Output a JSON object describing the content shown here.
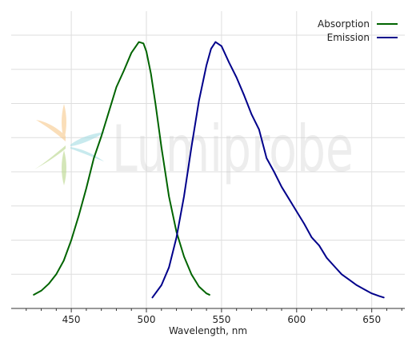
{
  "chart_data": {
    "type": "line",
    "xlabel": "Wavelength, nm",
    "ylabel": "",
    "xlim": [
      410,
      672
    ],
    "ylim": [
      0,
      1.0
    ],
    "x_ticks": [
      450,
      500,
      550,
      600,
      650
    ],
    "y_grid_levels": [
      0.125,
      0.25,
      0.375,
      0.5,
      0.625,
      0.75,
      0.875,
      1.0
    ],
    "grid": true,
    "legend_position": "top-right",
    "series": [
      {
        "name": "Absorption",
        "color": "#006400",
        "points": [
          [
            425,
            0.05
          ],
          [
            430,
            0.065
          ],
          [
            435,
            0.09
          ],
          [
            440,
            0.125
          ],
          [
            445,
            0.175
          ],
          [
            450,
            0.25
          ],
          [
            455,
            0.34
          ],
          [
            460,
            0.44
          ],
          [
            465,
            0.55
          ],
          [
            470,
            0.63
          ],
          [
            475,
            0.72
          ],
          [
            480,
            0.81
          ],
          [
            485,
            0.87
          ],
          [
            490,
            0.935
          ],
          [
            495,
            0.975
          ],
          [
            498,
            0.97
          ],
          [
            500,
            0.94
          ],
          [
            503,
            0.86
          ],
          [
            506,
            0.75
          ],
          [
            510,
            0.59
          ],
          [
            515,
            0.41
          ],
          [
            520,
            0.28
          ],
          [
            525,
            0.19
          ],
          [
            530,
            0.125
          ],
          [
            535,
            0.08
          ],
          [
            540,
            0.055
          ],
          [
            542,
            0.05
          ]
        ]
      },
      {
        "name": "Emission",
        "color": "#00008b",
        "points": [
          [
            504,
            0.04
          ],
          [
            510,
            0.085
          ],
          [
            515,
            0.15
          ],
          [
            520,
            0.26
          ],
          [
            525,
            0.41
          ],
          [
            530,
            0.59
          ],
          [
            535,
            0.76
          ],
          [
            540,
            0.89
          ],
          [
            543,
            0.95
          ],
          [
            546,
            0.975
          ],
          [
            550,
            0.96
          ],
          [
            555,
            0.9
          ],
          [
            560,
            0.845
          ],
          [
            565,
            0.78
          ],
          [
            570,
            0.71
          ],
          [
            575,
            0.655
          ],
          [
            580,
            0.55
          ],
          [
            585,
            0.5
          ],
          [
            590,
            0.445
          ],
          [
            595,
            0.4
          ],
          [
            600,
            0.355
          ],
          [
            605,
            0.31
          ],
          [
            610,
            0.26
          ],
          [
            615,
            0.23
          ],
          [
            620,
            0.185
          ],
          [
            625,
            0.155
          ],
          [
            630,
            0.125
          ],
          [
            635,
            0.105
          ],
          [
            640,
            0.085
          ],
          [
            645,
            0.07
          ],
          [
            650,
            0.055
          ],
          [
            655,
            0.045
          ],
          [
            658,
            0.04
          ]
        ]
      }
    ]
  },
  "watermark": {
    "text": "Lumiprobe",
    "colors": {
      "orange": "#f7c98b",
      "green": "#b8d68a",
      "cyan": "#a5dde3",
      "text": "#c8c8c8"
    }
  }
}
